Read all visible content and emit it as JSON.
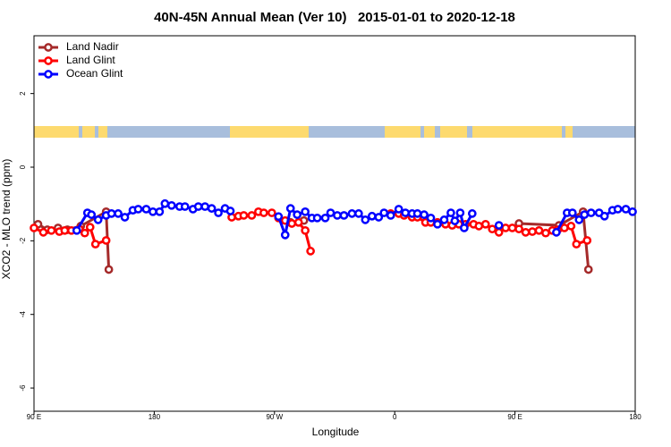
{
  "chart_data": {
    "type": "line",
    "title": "40N-45N Annual Mean (Ver 10)   2015-01-01 to 2020-12-18",
    "x_label": "Longitude",
    "y_label": "XCO2 - MLO trend (ppm)",
    "xlim": [
      90,
      540
    ],
    "ylim": [
      -6.63,
      3.57
    ],
    "xticks": [
      {
        "value": 90,
        "label": "90 E"
      },
      180,
      {
        "value": 270,
        "label": "90 W"
      },
      {
        "value": 360,
        "label": "0"
      },
      {
        "value": 450,
        "label": "90 E"
      },
      {
        "value": 540,
        "label": "180"
      }
    ],
    "yticks": [
      2,
      0,
      -2,
      -4,
      -6
    ],
    "legend": "top-left",
    "series": [
      {
        "name": "Land Nadir",
        "color": "#a52a2a",
        "x": [
          93,
          100,
          108,
          115,
          125,
          144,
          146,
          null,
          282,
          292,
          null,
          453,
          483,
          501,
          505
        ],
        "values": [
          -1.55,
          -1.7,
          -1.65,
          -1.7,
          -1.6,
          -1.21,
          -2.78,
          null,
          -1.5,
          -1.45,
          null,
          -1.53,
          -1.58,
          -1.21,
          -2.78
        ]
      },
      {
        "name": "Land Glint",
        "color": "#ff0000",
        "x": [
          90,
          97,
          103,
          109,
          113,
          118,
          124,
          128,
          132,
          136,
          144,
          null,
          238,
          243,
          247,
          253,
          258,
          262,
          268,
          273,
          278,
          283,
          288,
          293,
          297,
          null,
          357,
          363,
          367,
          373,
          377,
          383,
          387,
          392,
          398,
          403,
          408,
          413,
          419,
          423,
          428,
          433,
          438,
          443,
          448,
          453,
          458,
          463,
          468,
          473,
          478,
          482,
          487,
          492,
          496,
          504
        ],
        "values": [
          -1.65,
          -1.77,
          -1.72,
          -1.75,
          -1.72,
          -1.72,
          -1.68,
          -1.79,
          -1.63,
          -2.09,
          -1.99,
          null,
          -1.36,
          -1.33,
          -1.31,
          -1.31,
          -1.21,
          -1.24,
          -1.24,
          -1.38,
          -1.45,
          -1.53,
          -1.5,
          -1.72,
          -2.28,
          null,
          -1.26,
          -1.26,
          -1.31,
          -1.36,
          -1.36,
          -1.5,
          -1.5,
          -1.5,
          -1.55,
          -1.58,
          -1.55,
          -1.55,
          -1.55,
          -1.6,
          -1.55,
          -1.68,
          -1.77,
          -1.65,
          -1.65,
          -1.68,
          -1.77,
          -1.75,
          -1.72,
          -1.79,
          -1.72,
          -1.7,
          -1.65,
          -1.6,
          -2.09,
          -1.99
        ]
      },
      {
        "name": "Ocean Glint",
        "color": "#0000ff",
        "x": [
          122,
          130,
          133,
          138,
          144,
          148,
          153,
          158,
          164,
          168,
          174,
          179,
          184,
          188,
          193,
          199,
          203,
          209,
          213,
          218,
          223,
          228,
          233,
          237,
          null,
          273,
          278,
          282,
          287,
          293,
          298,
          302,
          308,
          312,
          317,
          322,
          328,
          333,
          338,
          343,
          348,
          352,
          357,
          363,
          368,
          373,
          377,
          382,
          387,
          392,
          397,
          402,
          405,
          409,
          412,
          418,
          null,
          438,
          null,
          481,
          489,
          493,
          498,
          502,
          507,
          513,
          517,
          523,
          527,
          533,
          538
        ],
        "values": [
          -1.72,
          -1.24,
          -1.29,
          -1.43,
          -1.31,
          -1.26,
          -1.26,
          -1.36,
          -1.17,
          -1.14,
          -1.14,
          -1.21,
          -1.21,
          -0.99,
          -1.04,
          -1.07,
          -1.07,
          -1.14,
          -1.07,
          -1.07,
          -1.12,
          -1.24,
          -1.12,
          -1.19,
          null,
          -1.34,
          -1.84,
          -1.12,
          -1.29,
          -1.21,
          -1.38,
          -1.38,
          -1.38,
          -1.24,
          -1.31,
          -1.31,
          -1.26,
          -1.26,
          -1.43,
          -1.33,
          -1.36,
          -1.24,
          -1.31,
          -1.14,
          -1.24,
          -1.26,
          -1.26,
          -1.29,
          -1.38,
          -1.55,
          -1.43,
          -1.24,
          -1.46,
          -1.24,
          -1.65,
          -1.26,
          null,
          -1.58,
          null,
          -1.77,
          -1.24,
          -1.24,
          -1.43,
          -1.29,
          -1.24,
          -1.24,
          -1.33,
          -1.17,
          -1.14,
          -1.14,
          -1.21
        ]
      }
    ]
  }
}
